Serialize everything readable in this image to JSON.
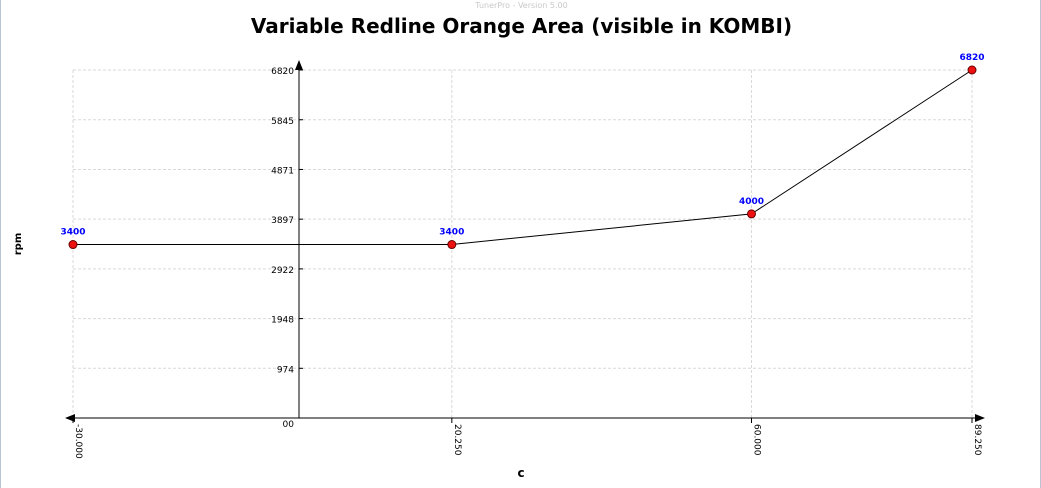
{
  "app": {
    "version_text": "TunerPro - Version 5.00"
  },
  "chart_data": {
    "type": "line",
    "title": "Variable Redline Orange Area (visible in KOMBI)",
    "xlabel": "c",
    "ylabel": "rpm",
    "x": [
      -30.0,
      20.25,
      60.0,
      89.25
    ],
    "series": [
      {
        "values": [
          3400,
          3400,
          4000,
          6820
        ]
      }
    ],
    "data_labels": [
      "3400",
      "3400",
      "4000",
      "6820"
    ],
    "x_ticks": [
      "-30.000",
      "20.250",
      "60.000",
      "89.250"
    ],
    "y_ticks": [
      "00",
      "974",
      "1948",
      "2922",
      "3897",
      "4871",
      "5845",
      "6820"
    ],
    "y_tick_values": [
      0,
      974,
      1948,
      2922,
      3897,
      4871,
      5845,
      6820
    ],
    "ylim": [
      0,
      6820
    ],
    "xlim": [
      -30.0,
      89.25
    ],
    "grid": true,
    "colors": {
      "line": "#000000",
      "marker_fill": "#ee1111",
      "marker_edge": "#660000",
      "label": "#0000ff",
      "grid": "#d9d9d9"
    }
  }
}
